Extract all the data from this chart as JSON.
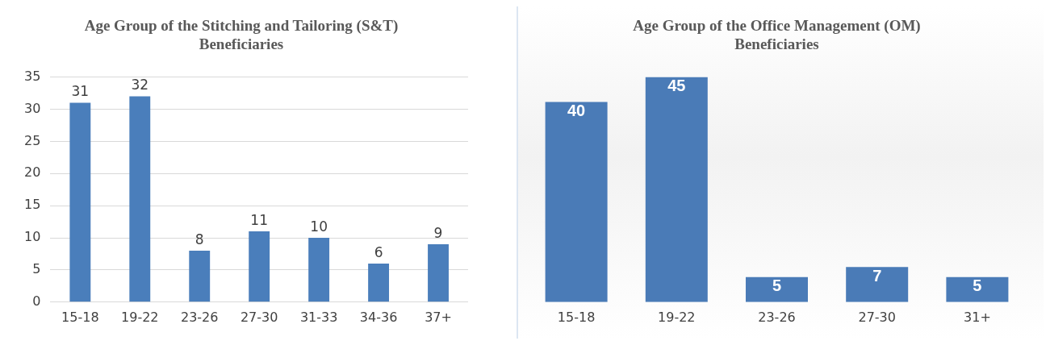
{
  "chart_data": [
    {
      "type": "bar",
      "title": "Age Group of the Stitching and Tailoring (S&T) Beneficiaries",
      "categories": [
        "15-18",
        "19-22",
        "23-26",
        "27-30",
        "31-33",
        "34-36",
        "37+"
      ],
      "values": [
        31,
        32,
        8,
        11,
        10,
        6,
        9
      ],
      "color": "#4a7ebb",
      "ylim": [
        0,
        35
      ],
      "yticks": [
        0,
        5,
        10,
        15,
        20,
        25,
        30,
        35
      ],
      "grid": "y",
      "data_labels": true,
      "legend": false
    },
    {
      "type": "bar",
      "title": "Age Group of the Office Management (OM) Beneficiaries",
      "categories": [
        "15-18",
        "19-22",
        "23-26",
        "27-30",
        "31+"
      ],
      "values": [
        40,
        45,
        5,
        7,
        5
      ],
      "color": "#4a7bb7",
      "data_labels": true,
      "legend": false,
      "tick_labels": "x",
      "grid": false
    }
  ]
}
